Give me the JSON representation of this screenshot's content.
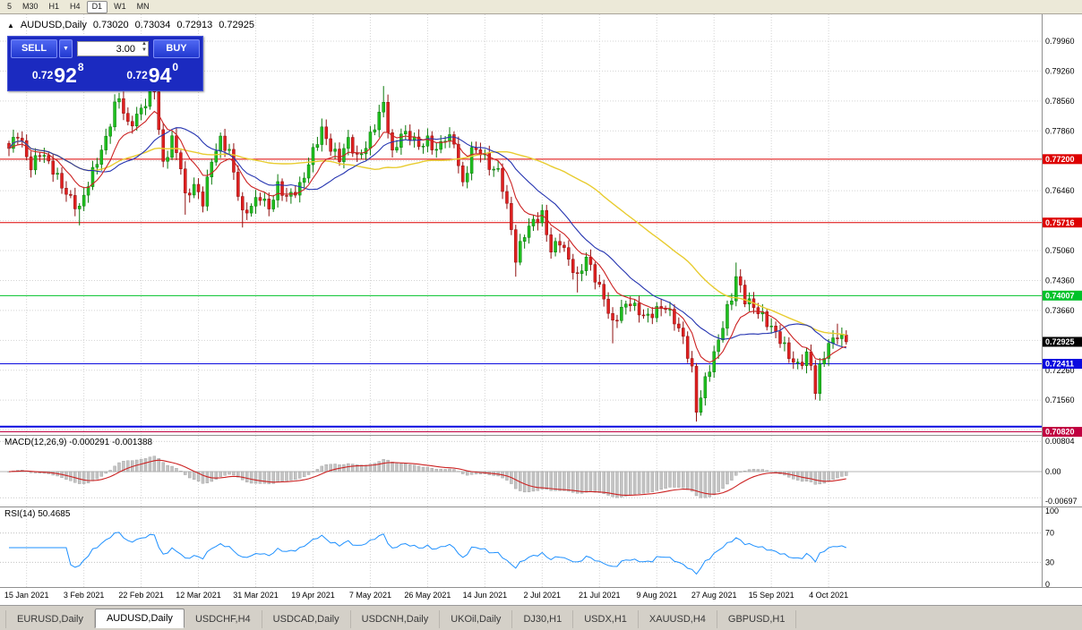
{
  "toolbar": {
    "items": [
      "5",
      "M30",
      "H1",
      "H4",
      "D1",
      "W1",
      "MN"
    ],
    "active": "D1"
  },
  "icons": {
    "chart": "▲",
    "dropdown": "▼",
    "spin_up": "▲",
    "spin_down": "▼"
  },
  "quote_bar": {
    "symbol": "AUDUSD,Daily",
    "open": "0.73020",
    "high": "0.73034",
    "low": "0.72913",
    "close": "0.72925"
  },
  "trade_panel": {
    "sell_label": "SELL",
    "buy_label": "BUY",
    "volume": "3.00",
    "sell_price_prefix": "0.72",
    "sell_price_big": "92",
    "sell_price_sup": "8",
    "buy_price_prefix": "0.72",
    "buy_price_big": "94",
    "buy_price_sup": "0"
  },
  "indicators": {
    "macd_label": "MACD(12,26,9) -0.000291 -0.001388",
    "rsi_label": "RSI(14) 50.4685"
  },
  "tabs": {
    "items": [
      "EURUSD,Daily",
      "AUDUSD,Daily",
      "USDCHF,H4",
      "USDCAD,Daily",
      "USDCNH,Daily",
      "UKOil,Daily",
      "DJ30,H1",
      "USDX,H1",
      "XAUUSD,H4",
      "GBPUSD,H1"
    ],
    "active_index": 1
  },
  "chart_data": {
    "type": "candlestick",
    "symbol": "AUDUSD",
    "timeframe": "Daily",
    "ohlc_display": {
      "open": 0.7302,
      "high": 0.73034,
      "low": 0.72913,
      "close": 0.72925
    },
    "current_price": {
      "value": 0.72925,
      "label": "0.72925",
      "color": "#000000"
    },
    "y_axis_labels": [
      {
        "price": 0.7996,
        "text": "0.79960"
      },
      {
        "price": 0.7926,
        "text": "0.79260"
      },
      {
        "price": 0.7856,
        "text": "0.78560"
      },
      {
        "price": 0.7786,
        "text": "0.77860"
      },
      {
        "price": 0.7646,
        "text": "0.76460"
      },
      {
        "price": 0.7506,
        "text": "0.75060"
      },
      {
        "price": 0.7436,
        "text": "0.74360"
      },
      {
        "price": 0.7366,
        "text": "0.73660"
      },
      {
        "price": 0.7226,
        "text": "0.72260"
      },
      {
        "price": 0.7156,
        "text": "0.71560"
      }
    ],
    "y_grid": [
      0.7996,
      0.7926,
      0.7856,
      0.7786,
      0.7716,
      0.7646,
      0.7576,
      0.7506,
      0.7436,
      0.7366,
      0.7296,
      0.7226,
      0.7156,
      0.7086
    ],
    "levels": [
      {
        "price": 0.772,
        "label": "0.77200",
        "color": "#dd0000",
        "tag": true,
        "width": 1
      },
      {
        "price": 0.75716,
        "label": "0.75716",
        "color": "#dd0000",
        "tag": true,
        "width": 1
      },
      {
        "price": 0.74007,
        "label": "0.74007",
        "color": "#00c22a",
        "tag": true,
        "width": 1
      },
      {
        "price": 0.72411,
        "label": "0.72411",
        "color": "#0a0adf",
        "tag": true,
        "width": 1
      },
      {
        "price": 0.7094,
        "label": "",
        "color": "#0a0adf",
        "tag": false,
        "width": 2
      },
      {
        "price": 0.7082,
        "label": "0.70820",
        "color": "#c00040",
        "tag": true,
        "width": 1
      }
    ],
    "x_axis_labels": [
      {
        "index": 4,
        "text": "15 Jan 2021"
      },
      {
        "index": 17,
        "text": "3 Feb 2021"
      },
      {
        "index": 30,
        "text": "22 Feb 2021"
      },
      {
        "index": 43,
        "text": "12 Mar 2021"
      },
      {
        "index": 56,
        "text": "31 Mar 2021"
      },
      {
        "index": 69,
        "text": "19 Apr 2021"
      },
      {
        "index": 82,
        "text": "7 May 2021"
      },
      {
        "index": 95,
        "text": "26 May 2021"
      },
      {
        "index": 108,
        "text": "14 Jun 2021"
      },
      {
        "index": 121,
        "text": "2 Jul 2021"
      },
      {
        "index": 134,
        "text": "21 Jul 2021"
      },
      {
        "index": 147,
        "text": "9 Aug 2021"
      },
      {
        "index": 160,
        "text": "27 Aug 2021"
      },
      {
        "index": 173,
        "text": "15 Sep 2021"
      },
      {
        "index": 186,
        "text": "4 Oct 2021"
      }
    ],
    "candle_count": 191,
    "price_path": [
      [
        0,
        0.7745
      ],
      [
        2,
        0.7775
      ],
      [
        5,
        0.7705
      ],
      [
        7,
        0.774
      ],
      [
        10,
        0.769
      ],
      [
        13,
        0.7645
      ],
      [
        16,
        0.76
      ],
      [
        18,
        0.766
      ],
      [
        20,
        0.772
      ],
      [
        22,
        0.777
      ],
      [
        24,
        0.784
      ],
      [
        25,
        0.786
      ],
      [
        27,
        0.78
      ],
      [
        29,
        0.7825
      ],
      [
        31,
        0.785
      ],
      [
        33,
        0.788
      ],
      [
        34,
        0.779
      ],
      [
        35,
        0.771
      ],
      [
        37,
        0.777
      ],
      [
        39,
        0.77
      ],
      [
        40,
        0.7625
      ],
      [
        42,
        0.766
      ],
      [
        44,
        0.7625
      ],
      [
        46,
        0.7715
      ],
      [
        48,
        0.776
      ],
      [
        50,
        0.774
      ],
      [
        52,
        0.7645
      ],
      [
        53,
        0.759
      ],
      [
        55,
        0.7605
      ],
      [
        57,
        0.7635
      ],
      [
        59,
        0.761
      ],
      [
        61,
        0.7655
      ],
      [
        63,
        0.7625
      ],
      [
        66,
        0.766
      ],
      [
        68,
        0.771
      ],
      [
        70,
        0.776
      ],
      [
        71,
        0.7785
      ],
      [
        73,
        0.775
      ],
      [
        75,
        0.7725
      ],
      [
        77,
        0.776
      ],
      [
        79,
        0.772
      ],
      [
        81,
        0.7755
      ],
      [
        83,
        0.78
      ],
      [
        85,
        0.7845
      ],
      [
        87,
        0.773
      ],
      [
        89,
        0.7785
      ],
      [
        91,
        0.7775
      ],
      [
        93,
        0.7745
      ],
      [
        95,
        0.7765
      ],
      [
        97,
        0.7745
      ],
      [
        99,
        0.777
      ],
      [
        101,
        0.7755
      ],
      [
        103,
        0.766
      ],
      [
        105,
        0.7745
      ],
      [
        107,
        0.7735
      ],
      [
        109,
        0.77
      ],
      [
        111,
        0.7695
      ],
      [
        112,
        0.766
      ],
      [
        113,
        0.761
      ],
      [
        114,
        0.7555
      ],
      [
        115,
        0.748
      ],
      [
        117,
        0.7545
      ],
      [
        119,
        0.758
      ],
      [
        121,
        0.759
      ],
      [
        123,
        0.75
      ],
      [
        125,
        0.753
      ],
      [
        127,
        0.749
      ],
      [
        129,
        0.744
      ],
      [
        131,
        0.7485
      ],
      [
        133,
        0.7445
      ],
      [
        135,
        0.74
      ],
      [
        137,
        0.733
      ],
      [
        139,
        0.7365
      ],
      [
        141,
        0.739
      ],
      [
        143,
        0.7365
      ],
      [
        145,
        0.7345
      ],
      [
        147,
        0.7365
      ],
      [
        149,
        0.738
      ],
      [
        151,
        0.7345
      ],
      [
        153,
        0.7295
      ],
      [
        155,
        0.7225
      ],
      [
        156,
        0.7135
      ],
      [
        158,
        0.7205
      ],
      [
        160,
        0.726
      ],
      [
        161,
        0.729
      ],
      [
        163,
        0.737
      ],
      [
        164,
        0.74
      ],
      [
        165,
        0.745
      ],
      [
        167,
        0.739
      ],
      [
        169,
        0.737
      ],
      [
        171,
        0.7355
      ],
      [
        173,
        0.733
      ],
      [
        175,
        0.7295
      ],
      [
        177,
        0.7255
      ],
      [
        179,
        0.724
      ],
      [
        181,
        0.7265
      ],
      [
        182,
        0.7235
      ],
      [
        183,
        0.7175
      ],
      [
        184,
        0.7225
      ],
      [
        185,
        0.726
      ],
      [
        186,
        0.729
      ],
      [
        187,
        0.73
      ],
      [
        188,
        0.7315
      ],
      [
        189,
        0.73
      ],
      [
        190,
        0.72925
      ]
    ],
    "wick_overrides": {
      "16": {
        "low": 0.7565
      },
      "25": {
        "high": 0.7875
      },
      "33": {
        "high": 0.7895
      },
      "40": {
        "low": 0.759
      },
      "53": {
        "low": 0.756
      },
      "71": {
        "high": 0.7815
      },
      "85": {
        "high": 0.7891
      },
      "115": {
        "low": 0.7445
      },
      "129": {
        "low": 0.7408
      },
      "137": {
        "low": 0.7289
      },
      "156": {
        "low": 0.7106
      },
      "165": {
        "high": 0.7478
      },
      "183": {
        "low": 0.7169
      },
      "188": {
        "high": 0.7335
      }
    },
    "moving_averages": [
      {
        "type": "ema",
        "period": 10,
        "color": "#cc2222"
      },
      {
        "type": "sma",
        "period": 20,
        "color": "#2433b0"
      },
      {
        "type": "sma",
        "period": 50,
        "color": "#e8cc30"
      }
    ],
    "macd": {
      "params": [
        12,
        26,
        9
      ],
      "value": -0.000291,
      "signal_value": -0.001388,
      "scale_labels": [
        "0.00804",
        "0.00",
        "-0.00697"
      ],
      "max": 0.00804,
      "min": -0.00697,
      "hist_color": "#c4c4c4",
      "signal_color": "#cc2222"
    },
    "rsi": {
      "period": 14,
      "value": 50.4685,
      "levels": [
        100,
        70,
        30,
        0
      ],
      "line_color": "#1E90FF"
    },
    "colors": {
      "bull": "#1fbf1f",
      "bull_edge": "#0a7a0a",
      "bear": "#df2020",
      "bear_edge": "#8f0f0f",
      "grid": "#d4d4d4",
      "panel_border": "#909090"
    }
  }
}
